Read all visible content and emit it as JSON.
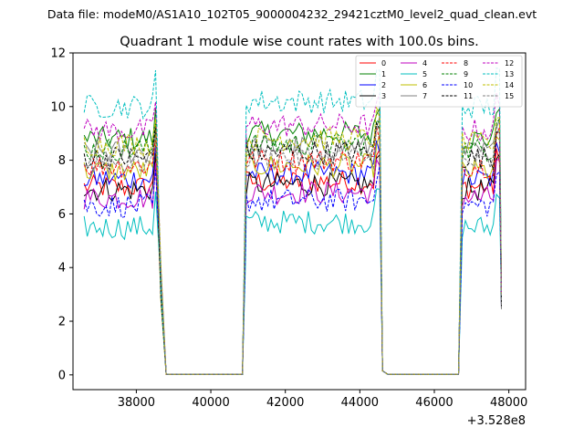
{
  "chart_data": {
    "type": "line",
    "suptitle": "Data file: modeM0/AS1A10_102T05_9000004232_29421cztM0_level2_quad_clean.evt",
    "title": "Quadrant 1 module wise count rates with 100.0s bins.",
    "xlabel": "",
    "ylabel": "",
    "x_offset_label": "+3.528e8",
    "xlim": [
      36300,
      48450
    ],
    "ylim": [
      -0.55,
      12
    ],
    "xticks": [
      38000,
      40000,
      42000,
      44000,
      46000,
      48000
    ],
    "xtick_labels": [
      "38000",
      "40000",
      "42000",
      "44000",
      "46000",
      "48000"
    ],
    "yticks": [
      0,
      2,
      4,
      6,
      8,
      10,
      12
    ],
    "ytick_labels": [
      "0",
      "2",
      "4",
      "6",
      "8",
      "10",
      "12"
    ],
    "bin_width_s": 100,
    "segments": [
      [
        36600,
        38600
      ],
      [
        40950,
        44550
      ],
      [
        46750,
        47800
      ]
    ],
    "gaps": [
      [
        38800,
        40850
      ],
      [
        44750,
        46650
      ]
    ],
    "legend_position": "top-right",
    "series": [
      {
        "name": "0",
        "color": "#ff0000",
        "dash": "solid",
        "level": 7.0
      },
      {
        "name": "1",
        "color": "#008000",
        "dash": "solid",
        "level": 8.8
      },
      {
        "name": "2",
        "color": "#0000ff",
        "dash": "solid",
        "level": 7.3
      },
      {
        "name": "3",
        "color": "#000000",
        "dash": "solid",
        "level": 6.9
      },
      {
        "name": "4",
        "color": "#bf00bf",
        "dash": "solid",
        "level": 6.6
      },
      {
        "name": "5",
        "color": "#00bfbf",
        "dash": "solid",
        "level": 5.5
      },
      {
        "name": "6",
        "color": "#bfbf00",
        "dash": "solid",
        "level": 7.6
      },
      {
        "name": "7",
        "color": "#808080",
        "dash": "solid",
        "level": 8.3
      },
      {
        "name": "8",
        "color": "#ff0000",
        "dash": "dashed",
        "level": 7.8
      },
      {
        "name": "9",
        "color": "#008000",
        "dash": "dashed",
        "level": 8.4
      },
      {
        "name": "10",
        "color": "#0000ff",
        "dash": "dashed",
        "level": 6.3
      },
      {
        "name": "11",
        "color": "#000000",
        "dash": "dashed",
        "level": 8.1
      },
      {
        "name": "12",
        "color": "#bf00bf",
        "dash": "dashed",
        "level": 9.1
      },
      {
        "name": "13",
        "color": "#00bfbf",
        "dash": "dashed",
        "level": 10.0
      },
      {
        "name": "14",
        "color": "#bfbf00",
        "dash": "dashed",
        "level": 8.6
      },
      {
        "name": "15",
        "color": "#808080",
        "dash": "dashed",
        "level": 7.9
      }
    ]
  }
}
